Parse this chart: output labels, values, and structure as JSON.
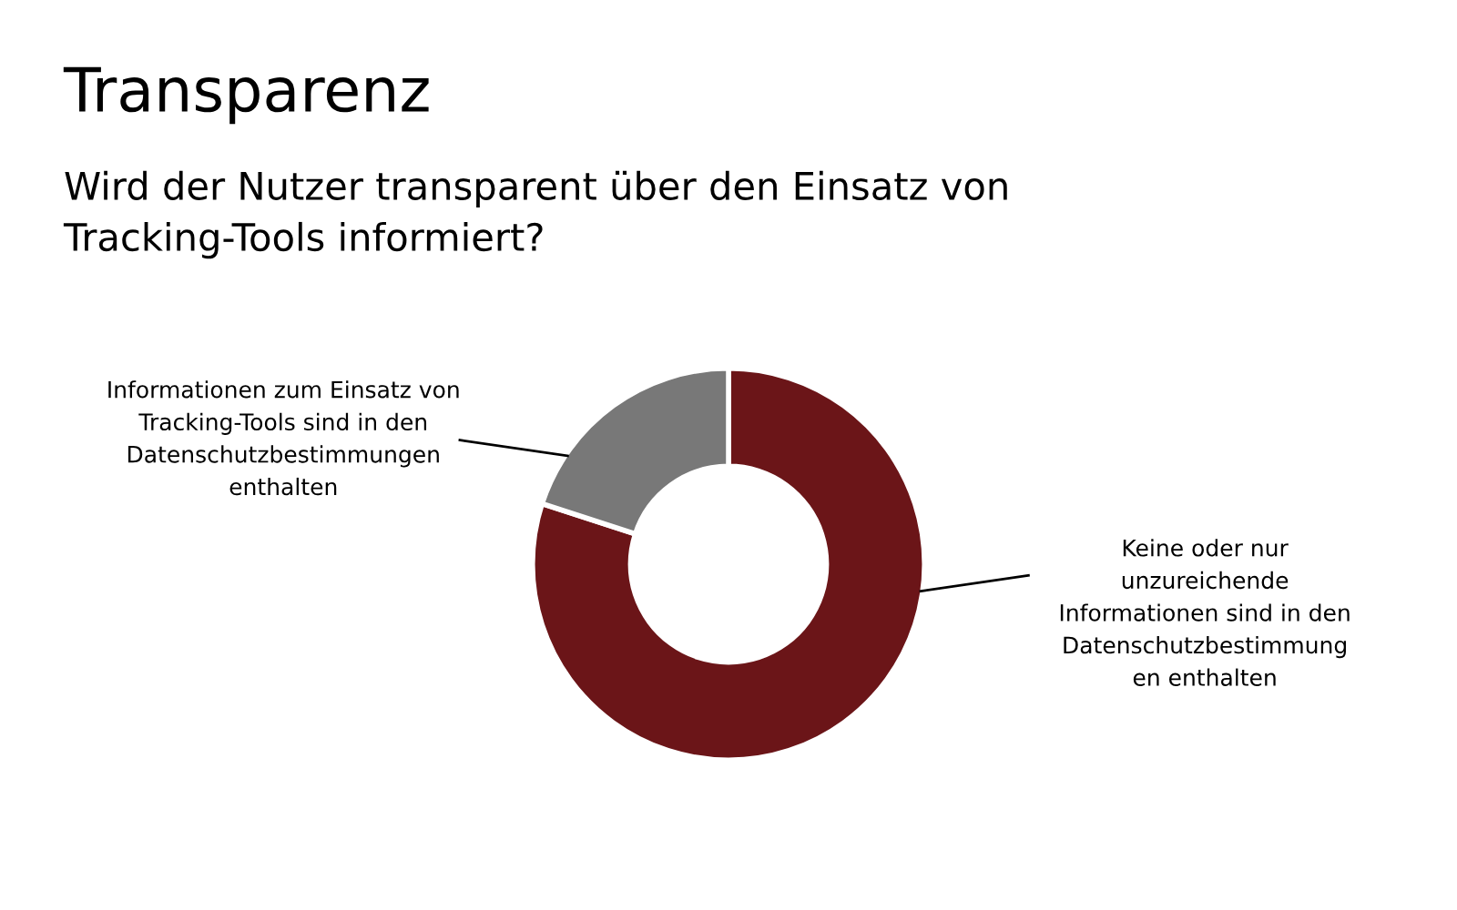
{
  "chart_data": {
    "type": "donut",
    "title": "Transparenz",
    "subtitle": "Wird der Nutzer transparent über den Einsatz von\nTracking-Tools informiert?",
    "categories": [
      "Keine oder nur\nunzureichende\nInformationen sind in den\nDatenschutzbestimmung\nen enthalten",
      "Informationen zum Einsatz von\nTracking-Tools sind in den\nDatenschutzbestimmungen\nenthalten"
    ],
    "values": [
      80,
      20
    ],
    "colors": [
      "#6b1518",
      "#787878"
    ],
    "legend": false
  }
}
